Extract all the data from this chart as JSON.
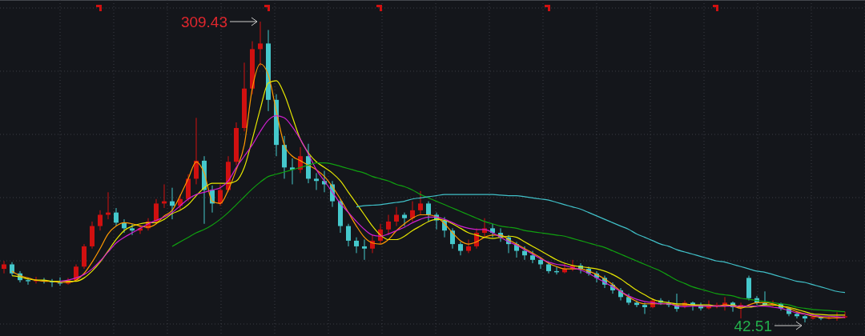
{
  "chart_data": {
    "type": "candlestick",
    "categories": [
      null,
      null,
      null,
      null,
      null,
      null,
      null,
      null,
      null,
      null,
      null,
      null,
      null,
      null,
      null,
      null,
      null,
      null,
      null,
      null,
      null,
      null,
      null,
      null,
      null,
      null,
      null,
      null,
      null,
      null,
      null,
      null,
      null,
      null,
      null,
      null,
      null,
      null,
      null,
      null,
      null,
      null,
      null,
      null,
      null,
      null,
      null,
      null,
      null,
      null,
      null,
      null,
      null,
      null,
      null,
      null,
      null,
      null,
      null,
      null,
      null,
      null,
      null,
      null,
      null,
      null,
      null,
      null,
      null,
      null,
      null,
      null,
      null,
      null,
      null,
      null,
      null,
      null,
      null,
      null,
      null,
      null,
      null,
      null,
      null,
      null,
      null,
      null,
      null,
      null,
      null,
      null,
      null,
      null,
      null,
      null,
      null,
      null,
      null,
      null,
      null,
      null,
      null,
      null,
      null,
      null
    ],
    "ohlc": [
      [
        90,
        97,
        86,
        94
      ],
      [
        94,
        96,
        84,
        86
      ],
      [
        86,
        88,
        78,
        80
      ],
      [
        80,
        82,
        76,
        79
      ],
      [
        79,
        83,
        77,
        80
      ],
      [
        80,
        82,
        77,
        79
      ],
      [
        79,
        81,
        74,
        78
      ],
      [
        78,
        82.5,
        75,
        77
      ],
      [
        77,
        82,
        76,
        80
      ],
      [
        80,
        94,
        79,
        92
      ],
      [
        92,
        112,
        90,
        110
      ],
      [
        110,
        132,
        108,
        128
      ],
      [
        128,
        142,
        124,
        138
      ],
      [
        138,
        158,
        134,
        140
      ],
      [
        140,
        144,
        128,
        131
      ],
      [
        131,
        134,
        122,
        126
      ],
      [
        126,
        130,
        120,
        124
      ],
      [
        124,
        129,
        121,
        126
      ],
      [
        126,
        135,
        124,
        132
      ],
      [
        132,
        152,
        130,
        148
      ],
      [
        148,
        165,
        144,
        150
      ],
      [
        150,
        162,
        134,
        146
      ],
      [
        146,
        156,
        142,
        152
      ],
      [
        152,
        174,
        150,
        170
      ],
      [
        170,
        224,
        165,
        186
      ],
      [
        186,
        190,
        130,
        160
      ],
      [
        160,
        164,
        140,
        148
      ],
      [
        148,
        165,
        146,
        160
      ],
      [
        160,
        190,
        158,
        185
      ],
      [
        185,
        220,
        182,
        215
      ],
      [
        215,
        273,
        212,
        250
      ],
      [
        250,
        292,
        245,
        285
      ],
      [
        285,
        309.43,
        270,
        290
      ],
      [
        290,
        302,
        230,
        240
      ],
      [
        240,
        245,
        190,
        200
      ],
      [
        200,
        208,
        170,
        180
      ],
      [
        180,
        188,
        165,
        178
      ],
      [
        178,
        198,
        175,
        190
      ],
      [
        190,
        201,
        166,
        170
      ],
      [
        170,
        175,
        160,
        168
      ],
      [
        168,
        177,
        158,
        165
      ],
      [
        165,
        168,
        145,
        150
      ],
      [
        150,
        152,
        122,
        128
      ],
      [
        128,
        130,
        110,
        115
      ],
      [
        115,
        118,
        104,
        110
      ],
      [
        110,
        116,
        98,
        108
      ],
      [
        108,
        120,
        104,
        115
      ],
      [
        115,
        130,
        112,
        125
      ],
      [
        125,
        138,
        120,
        132
      ],
      [
        132,
        145,
        128,
        138
      ],
      [
        138,
        140,
        128,
        135
      ],
      [
        135,
        150,
        132,
        142
      ],
      [
        142,
        159,
        138,
        148
      ],
      [
        148,
        150,
        132,
        138
      ],
      [
        138,
        140,
        125,
        133
      ],
      [
        133,
        136,
        118,
        124
      ],
      [
        124,
        126,
        108,
        112
      ],
      [
        112,
        114,
        102,
        106
      ],
      [
        106,
        116,
        104,
        110
      ],
      [
        110,
        126,
        108,
        122
      ],
      [
        122,
        135,
        118,
        126
      ],
      [
        126,
        130,
        118,
        122
      ],
      [
        122,
        126,
        114,
        118
      ],
      [
        118,
        120,
        104,
        112
      ],
      [
        112,
        114,
        100,
        106
      ],
      [
        106,
        110,
        98,
        102
      ],
      [
        102,
        106,
        95,
        98
      ],
      [
        98,
        100,
        90,
        94
      ],
      [
        94,
        96,
        86,
        88
      ],
      [
        88,
        92,
        85,
        87
      ],
      [
        87,
        95,
        86,
        90
      ],
      [
        90,
        98,
        88,
        93
      ],
      [
        93,
        95,
        86,
        90
      ],
      [
        90,
        92,
        84,
        86
      ],
      [
        86,
        88,
        78,
        82
      ],
      [
        82,
        84,
        73,
        76
      ],
      [
        76,
        78,
        68,
        71
      ],
      [
        71,
        73,
        62,
        65
      ],
      [
        65,
        68,
        58,
        60
      ],
      [
        60,
        62,
        56,
        58
      ],
      [
        58,
        60,
        50,
        56
      ],
      [
        56,
        64,
        55,
        62
      ],
      [
        62,
        64,
        58,
        60
      ],
      [
        60,
        62,
        56,
        58
      ],
      [
        58,
        68,
        52,
        54.5
      ],
      [
        57,
        62,
        55,
        60
      ],
      [
        60,
        61,
        53,
        58
      ],
      [
        58,
        60,
        53,
        55
      ],
      [
        55,
        62,
        54,
        57
      ],
      [
        57,
        60,
        55,
        58
      ],
      [
        58,
        65,
        53,
        60
      ],
      [
        60,
        61,
        52,
        56
      ],
      [
        56,
        60,
        46,
        58
      ],
      [
        82,
        84,
        62,
        64
      ],
      [
        64,
        66,
        58,
        60
      ],
      [
        60,
        70,
        57,
        58
      ],
      [
        58,
        62,
        56,
        59
      ],
      [
        59,
        60,
        53,
        55
      ],
      [
        55,
        56,
        48,
        50
      ],
      [
        50,
        52,
        46,
        48
      ],
      [
        48,
        49,
        42.51,
        46
      ],
      [
        46,
        49,
        45,
        47
      ],
      [
        47,
        48,
        44.5,
        46
      ],
      [
        46,
        48,
        45,
        46.5
      ],
      [
        46.5,
        51.5,
        44,
        47
      ],
      [
        47,
        52,
        46,
        48
      ]
    ],
    "series": [
      {
        "type": "line",
        "color": "#ff9900",
        "values": [
          null,
          88,
          84,
          82,
          80,
          79,
          79,
          78,
          78,
          80,
          86,
          96,
          108,
          121,
          128,
          131,
          130,
          128,
          127,
          130,
          137,
          142,
          155,
          170,
          185,
          175,
          150,
          148,
          160,
          178,
          200,
          250,
          272,
          262,
          230,
          200,
          190,
          186,
          182,
          178,
          172,
          163,
          152,
          140,
          128,
          118,
          113,
          112,
          116,
          124,
          130,
          135,
          138,
          138,
          136,
          130,
          122,
          115,
          112,
          114,
          118,
          120,
          120,
          116,
          112,
          108,
          104,
          100,
          95,
          92,
          90,
          90,
          90,
          88,
          85,
          81,
          76,
          70,
          65,
          61,
          59,
          59,
          59,
          59,
          58,
          58,
          58,
          57,
          57,
          57,
          58,
          57,
          55,
          58,
          60,
          60,
          59,
          57,
          55,
          52,
          50,
          48,
          47,
          46.5,
          46.5,
          47
        ]
      },
      {
        "type": "line",
        "color": "#e6e600",
        "values": [
          null,
          84,
          83,
          81,
          80,
          80,
          79,
          79,
          79,
          79,
          82,
          88,
          96,
          106,
          116,
          124,
          128,
          130,
          131,
          131,
          134,
          139,
          142,
          147,
          155,
          162,
          166,
          166,
          166,
          168,
          180,
          205,
          232,
          255,
          257,
          245,
          225,
          205,
          193,
          185,
          180,
          175,
          168,
          158,
          148,
          138,
          128,
          120,
          116,
          116,
          119,
          124,
          128,
          132,
          134,
          133,
          130,
          126,
          122,
          120,
          118,
          117,
          118,
          119,
          118,
          114,
          110,
          106,
          102,
          98,
          95,
          93,
          92,
          91,
          90,
          88,
          85,
          81,
          76,
          71,
          67,
          63,
          61,
          60,
          59,
          59,
          58,
          58,
          58,
          57,
          57,
          58,
          56,
          56,
          57,
          58,
          58,
          57,
          56,
          54,
          52,
          50,
          49.5,
          49,
          49,
          49
        ]
      },
      {
        "type": "line",
        "color": "#d020d0",
        "values": [
          null,
          null,
          null,
          null,
          null,
          null,
          null,
          79,
          80,
          82,
          85,
          90,
          97,
          105,
          113,
          118,
          122,
          126,
          130,
          133,
          136,
          140,
          146,
          152,
          156,
          158,
          160,
          162,
          168,
          180,
          190,
          200,
          212,
          222,
          226,
          224,
          216,
          205,
          192,
          178,
          168,
          158,
          148,
          140,
          132,
          125,
          120,
          119,
          121,
          124,
          127,
          131,
          134,
          136,
          136,
          134,
          131,
          128,
          126,
          125,
          125,
          122,
          118,
          114,
          111,
          107,
          103,
          99,
          96,
          94,
          93,
          91,
          89,
          86,
          82,
          78,
          74,
          70,
          66,
          63,
          61,
          60,
          59,
          59,
          57,
          56.5,
          57,
          57,
          57,
          57,
          57,
          57,
          57,
          57,
          57,
          57,
          56,
          55,
          53,
          51,
          50,
          49,
          48,
          48,
          47.5,
          47
        ]
      },
      {
        "type": "line",
        "color": "#10a010",
        "values": [
          null,
          null,
          null,
          null,
          null,
          null,
          null,
          null,
          null,
          null,
          null,
          null,
          null,
          null,
          null,
          null,
          null,
          null,
          null,
          null,
          null,
          110,
          114,
          118,
          122,
          125,
          129,
          134,
          140,
          147,
          154,
          161,
          167,
          172,
          174,
          176,
          178,
          180,
          182,
          184,
          184,
          183,
          181,
          179,
          177,
          175,
          172,
          170,
          168,
          165,
          163,
          160,
          156,
          153,
          150,
          147,
          144,
          141,
          138,
          135,
          132,
          130,
          128,
          127,
          126,
          124,
          123,
          122,
          121,
          120,
          119,
          117,
          115,
          113,
          111,
          109,
          106,
          103,
          100,
          97,
          94,
          91,
          88,
          84,
          80,
          77,
          74,
          72,
          70,
          68,
          67,
          66,
          64,
          63,
          62,
          61,
          60,
          59,
          58,
          56,
          55,
          54,
          53.5,
          53,
          52.5,
          52
        ]
      },
      {
        "type": "line",
        "color": "#40c0c8",
        "values": [
          null,
          null,
          null,
          null,
          null,
          null,
          null,
          null,
          null,
          null,
          null,
          null,
          null,
          null,
          null,
          null,
          null,
          null,
          null,
          null,
          null,
          null,
          null,
          null,
          null,
          null,
          null,
          null,
          null,
          null,
          null,
          null,
          null,
          null,
          null,
          null,
          null,
          null,
          null,
          null,
          null,
          null,
          null,
          null,
          145,
          146,
          146.5,
          147,
          148,
          149,
          150,
          152,
          153,
          154,
          155,
          156,
          156,
          156,
          156,
          156,
          156,
          156,
          155.5,
          155,
          155,
          154,
          153,
          152,
          151,
          149,
          147,
          145,
          143,
          140,
          137,
          134,
          131,
          128,
          125,
          121,
          118,
          115,
          112,
          110,
          107,
          105,
          103,
          101,
          99,
          97,
          96,
          94,
          92,
          90,
          88,
          87,
          85,
          83,
          81,
          79,
          78,
          76,
          74,
          72,
          70,
          69
        ]
      }
    ],
    "annotations": [
      "309.43",
      "42.51"
    ],
    "grid": true
  }
}
